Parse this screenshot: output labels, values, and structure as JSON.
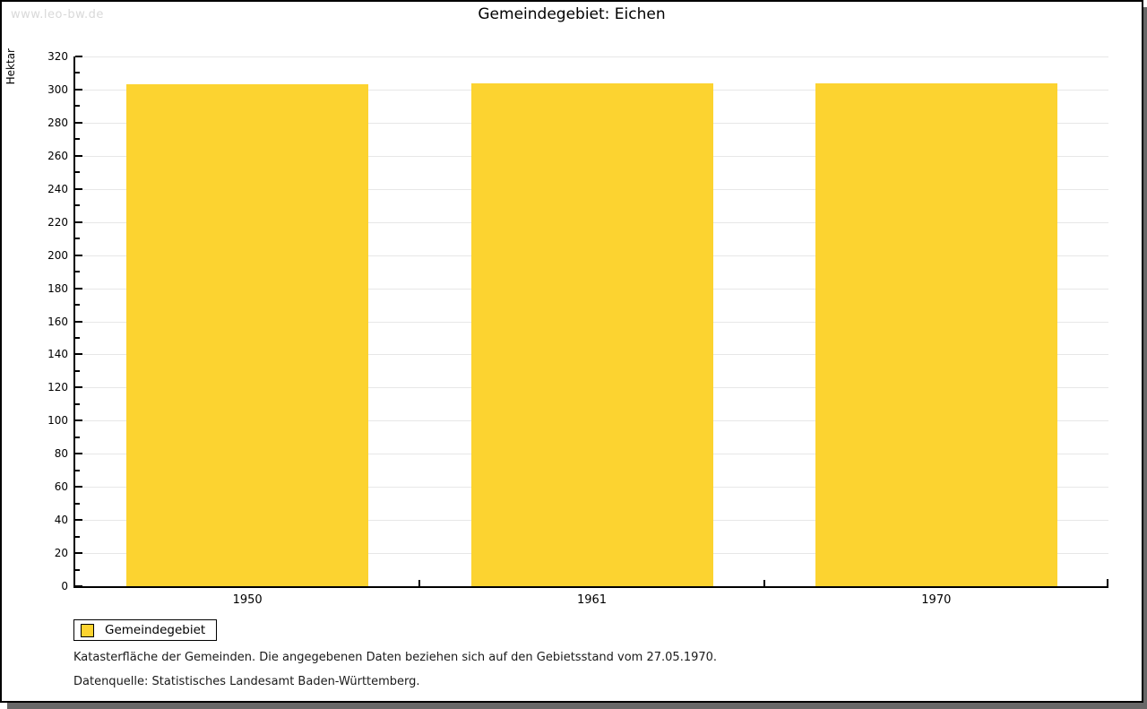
{
  "page": {
    "watermark": "www.leo-bw.de",
    "title": "Gemeindegebiet: Eichen"
  },
  "chart_data": {
    "type": "bar",
    "title": "Gemeindegebiet: Eichen",
    "categories": [
      "1950",
      "1961",
      "1970"
    ],
    "series": [
      {
        "name": "Gemeindegebiet",
        "values": [
          303,
          304,
          304
        ]
      }
    ],
    "xlabel": "",
    "ylabel": "Hektar",
    "ylim": [
      0,
      320
    ],
    "ytick_major": 20,
    "ytick_minor": 10,
    "grid": true,
    "legend_position": "bottom-left",
    "bar_color": "#fcd330"
  },
  "legend": {
    "items": [
      {
        "label": "Gemeindegebiet",
        "swatch_color": "#fcd330"
      }
    ]
  },
  "footnotes": {
    "line1": "Katasterfläche der Gemeinden. Die angegebenen Daten beziehen sich auf den Gebietsstand vom 27.05.1970.",
    "line2": "Datenquelle: Statistisches Landesamt Baden-Württemberg."
  },
  "colors": {
    "bar": "#fcd330",
    "grid": "#e7e7e7",
    "axis": "#000000",
    "watermark": "#d9d9d9",
    "shadow": "#686868"
  }
}
